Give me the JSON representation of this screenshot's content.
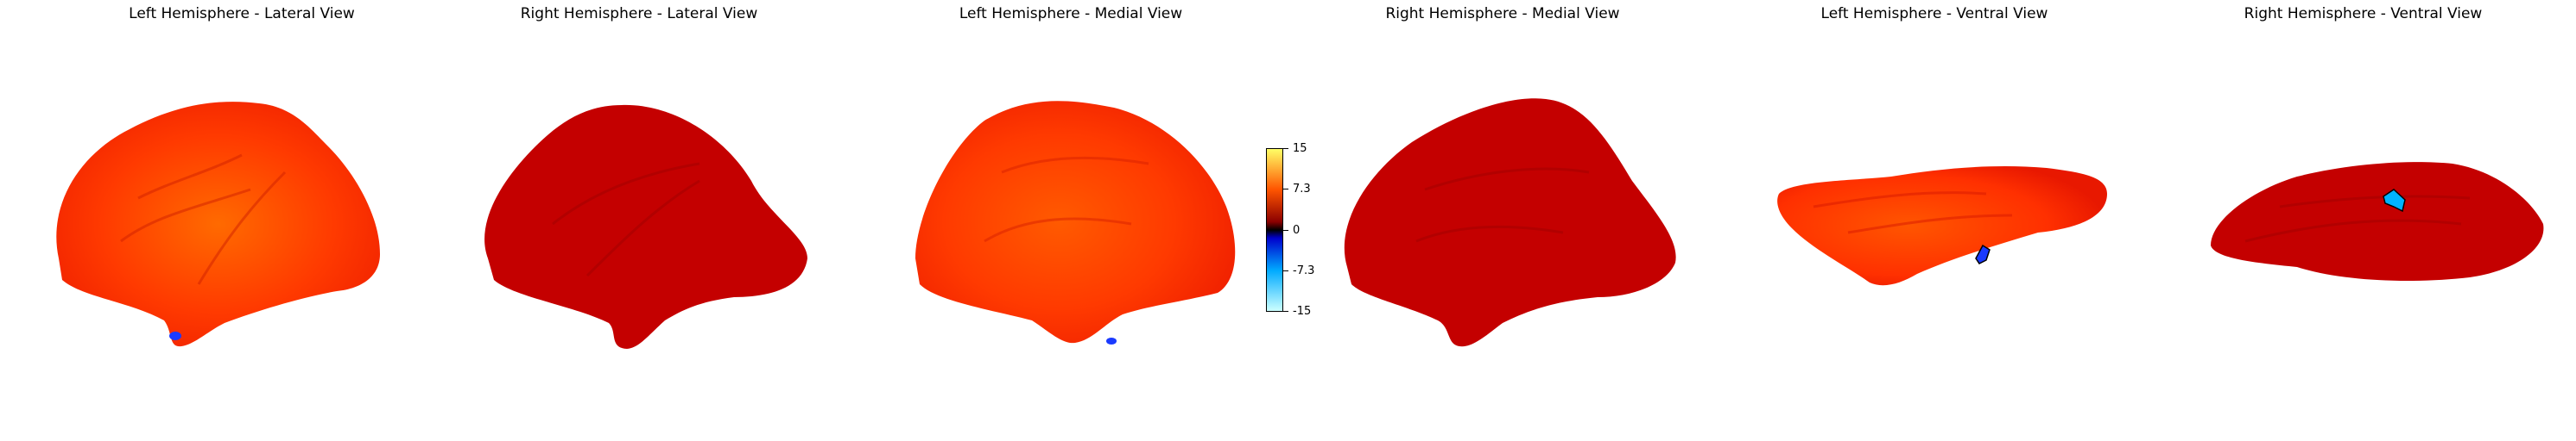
{
  "panels": [
    {
      "title": "Left Hemisphere - Lateral View"
    },
    {
      "title": "Right Hemisphere - Lateral View"
    },
    {
      "title": "Left Hemisphere - Medial View"
    },
    {
      "title": "Right Hemisphere - Medial View"
    },
    {
      "title": "Left Hemisphere - Ventral View"
    },
    {
      "title": "Right Hemisphere - Ventral View"
    }
  ],
  "colorbar": {
    "ticks": [
      "15",
      "7.3",
      "0",
      "-7.3",
      "-15"
    ],
    "colors": {
      "max": "#ffff66",
      "high": "#ff5500",
      "mid_pos": "#8b0000",
      "zero": "#000000",
      "mid_neg": "#0000cc",
      "low": "#00aaff",
      "min": "#ccffff"
    }
  },
  "colors": {
    "surface_bright": "#ff3b00",
    "surface_dark": "#c00000",
    "negative_cluster": "#1a3aff"
  }
}
